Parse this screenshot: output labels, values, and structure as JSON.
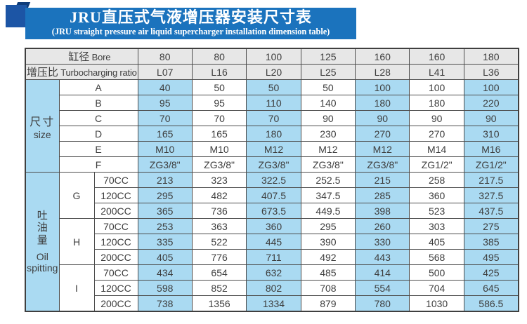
{
  "banner": {
    "title": "JRU直压式气液增压器安装尺寸表",
    "subtitle": "(JRU straight pressure air liquid supercharger installation dimension table)",
    "bg_color": "#1b73bd",
    "square_color": "#1c55a5",
    "fold_color": "#0e3c7a"
  },
  "colors": {
    "cell_blue": "#aadaf2",
    "header_gray": "#e7e7e7",
    "border": "#4c4c4c",
    "text": "#3d3d3d"
  },
  "table": {
    "header_rows": [
      {
        "label_zh": "缸径",
        "label_en": "Bore",
        "values": [
          "80",
          "80",
          "100",
          "125",
          "160",
          "160",
          "180"
        ]
      },
      {
        "label_zh": "增压比",
        "label_en": "Turbocharging ratio",
        "values": [
          "L07",
          "L16",
          "L20",
          "L25",
          "L28",
          "L41",
          "L36"
        ]
      }
    ],
    "size_section": {
      "label_zh": "尺寸",
      "label_en": "size",
      "rows": [
        {
          "label": "A",
          "values": [
            "40",
            "50",
            "50",
            "50",
            "100",
            "100",
            "100"
          ]
        },
        {
          "label": "B",
          "values": [
            "95",
            "95",
            "110",
            "140",
            "180",
            "180",
            "220"
          ]
        },
        {
          "label": "C",
          "values": [
            "70",
            "70",
            "70",
            "90",
            "90",
            "90",
            "90"
          ]
        },
        {
          "label": "D",
          "values": [
            "165",
            "165",
            "180",
            "230",
            "270",
            "270",
            "310"
          ]
        },
        {
          "label": "E",
          "values": [
            "M10",
            "M10",
            "M12",
            "M12",
            "M12",
            "M14",
            "M16"
          ]
        },
        {
          "label": "F",
          "values": [
            "ZG3/8\"",
            "ZG3/8\"",
            "ZG3/8\"",
            "ZG3/8\"",
            "ZG3/8\"",
            "ZG1/2\"",
            "ZG1/2\""
          ]
        }
      ]
    },
    "oil_section": {
      "label_zh": "吐油量",
      "label_en_line1": "Oil",
      "label_en_line2": "spitting",
      "groups": [
        {
          "label": "G",
          "rows": [
            {
              "label": "70CC",
              "values": [
                "213",
                "323",
                "322.5",
                "252.5",
                "215",
                "258",
                "217.5"
              ]
            },
            {
              "label": "120CC",
              "values": [
                "295",
                "482",
                "407.5",
                "347.5",
                "285",
                "360",
                "327.5"
              ]
            },
            {
              "label": "200CC",
              "values": [
                "365",
                "736",
                "673.5",
                "449.5",
                "398",
                "523",
                "437.5"
              ]
            }
          ]
        },
        {
          "label": "H",
          "rows": [
            {
              "label": "70CC",
              "values": [
                "253",
                "363",
                "360",
                "295",
                "260",
                "303",
                "275"
              ]
            },
            {
              "label": "120CC",
              "values": [
                "335",
                "522",
                "445",
                "390",
                "330",
                "405",
                "385"
              ]
            },
            {
              "label": "200CC",
              "values": [
                "405",
                "776",
                "711",
                "492",
                "443",
                "568",
                "495"
              ]
            }
          ]
        },
        {
          "label": "I",
          "rows": [
            {
              "label": "70CC",
              "values": [
                "434",
                "654",
                "632",
                "485",
                "414",
                "500",
                "425"
              ]
            },
            {
              "label": "120CC",
              "values": [
                "598",
                "852",
                "802",
                "708",
                "554",
                "704",
                "645"
              ]
            },
            {
              "label": "200CC",
              "values": [
                "738",
                "1356",
                "1334",
                "879",
                "780",
                "1030",
                "586.5"
              ]
            }
          ]
        }
      ]
    }
  }
}
